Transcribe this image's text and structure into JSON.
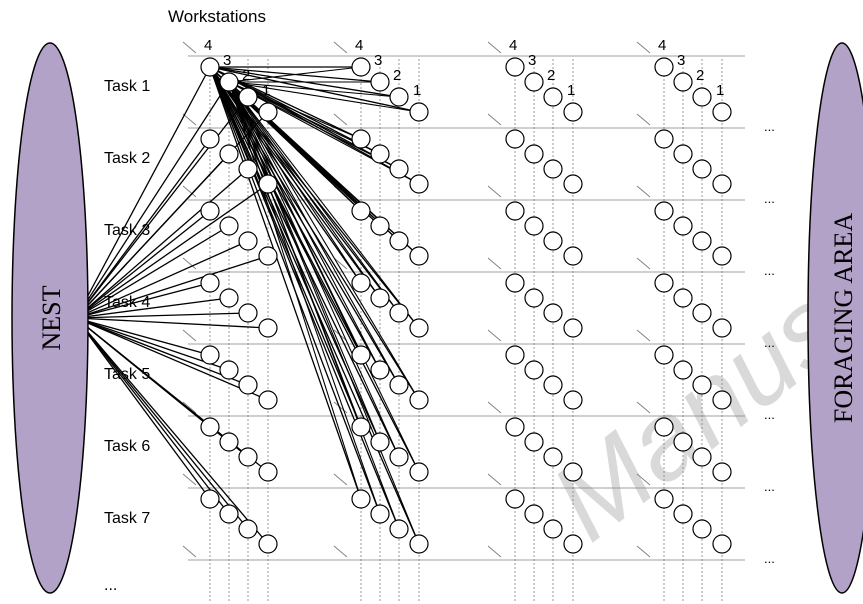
{
  "header": {
    "label": "Workstations"
  },
  "nest": {
    "label": "NEST",
    "fill": "#b3a2c7",
    "stroke": "#000000"
  },
  "foraging": {
    "label": "FORAGING AREA",
    "fill": "#b3a2c7",
    "stroke": "#000000"
  },
  "tasks": [
    "Task 1",
    "Task 2",
    "Task 3",
    "Task 4",
    "Task 5",
    "Task 6",
    "Task 7"
  ],
  "tasks_more": "...",
  "workstation_numbers": [
    "4",
    "3",
    "2",
    "1"
  ],
  "continuation": "...",
  "colors": {
    "line": "#000000",
    "guide": "#7f7f7f",
    "watermark": "#d9d9d9"
  },
  "watermark": {
    "text": "Manuscript"
  }
}
